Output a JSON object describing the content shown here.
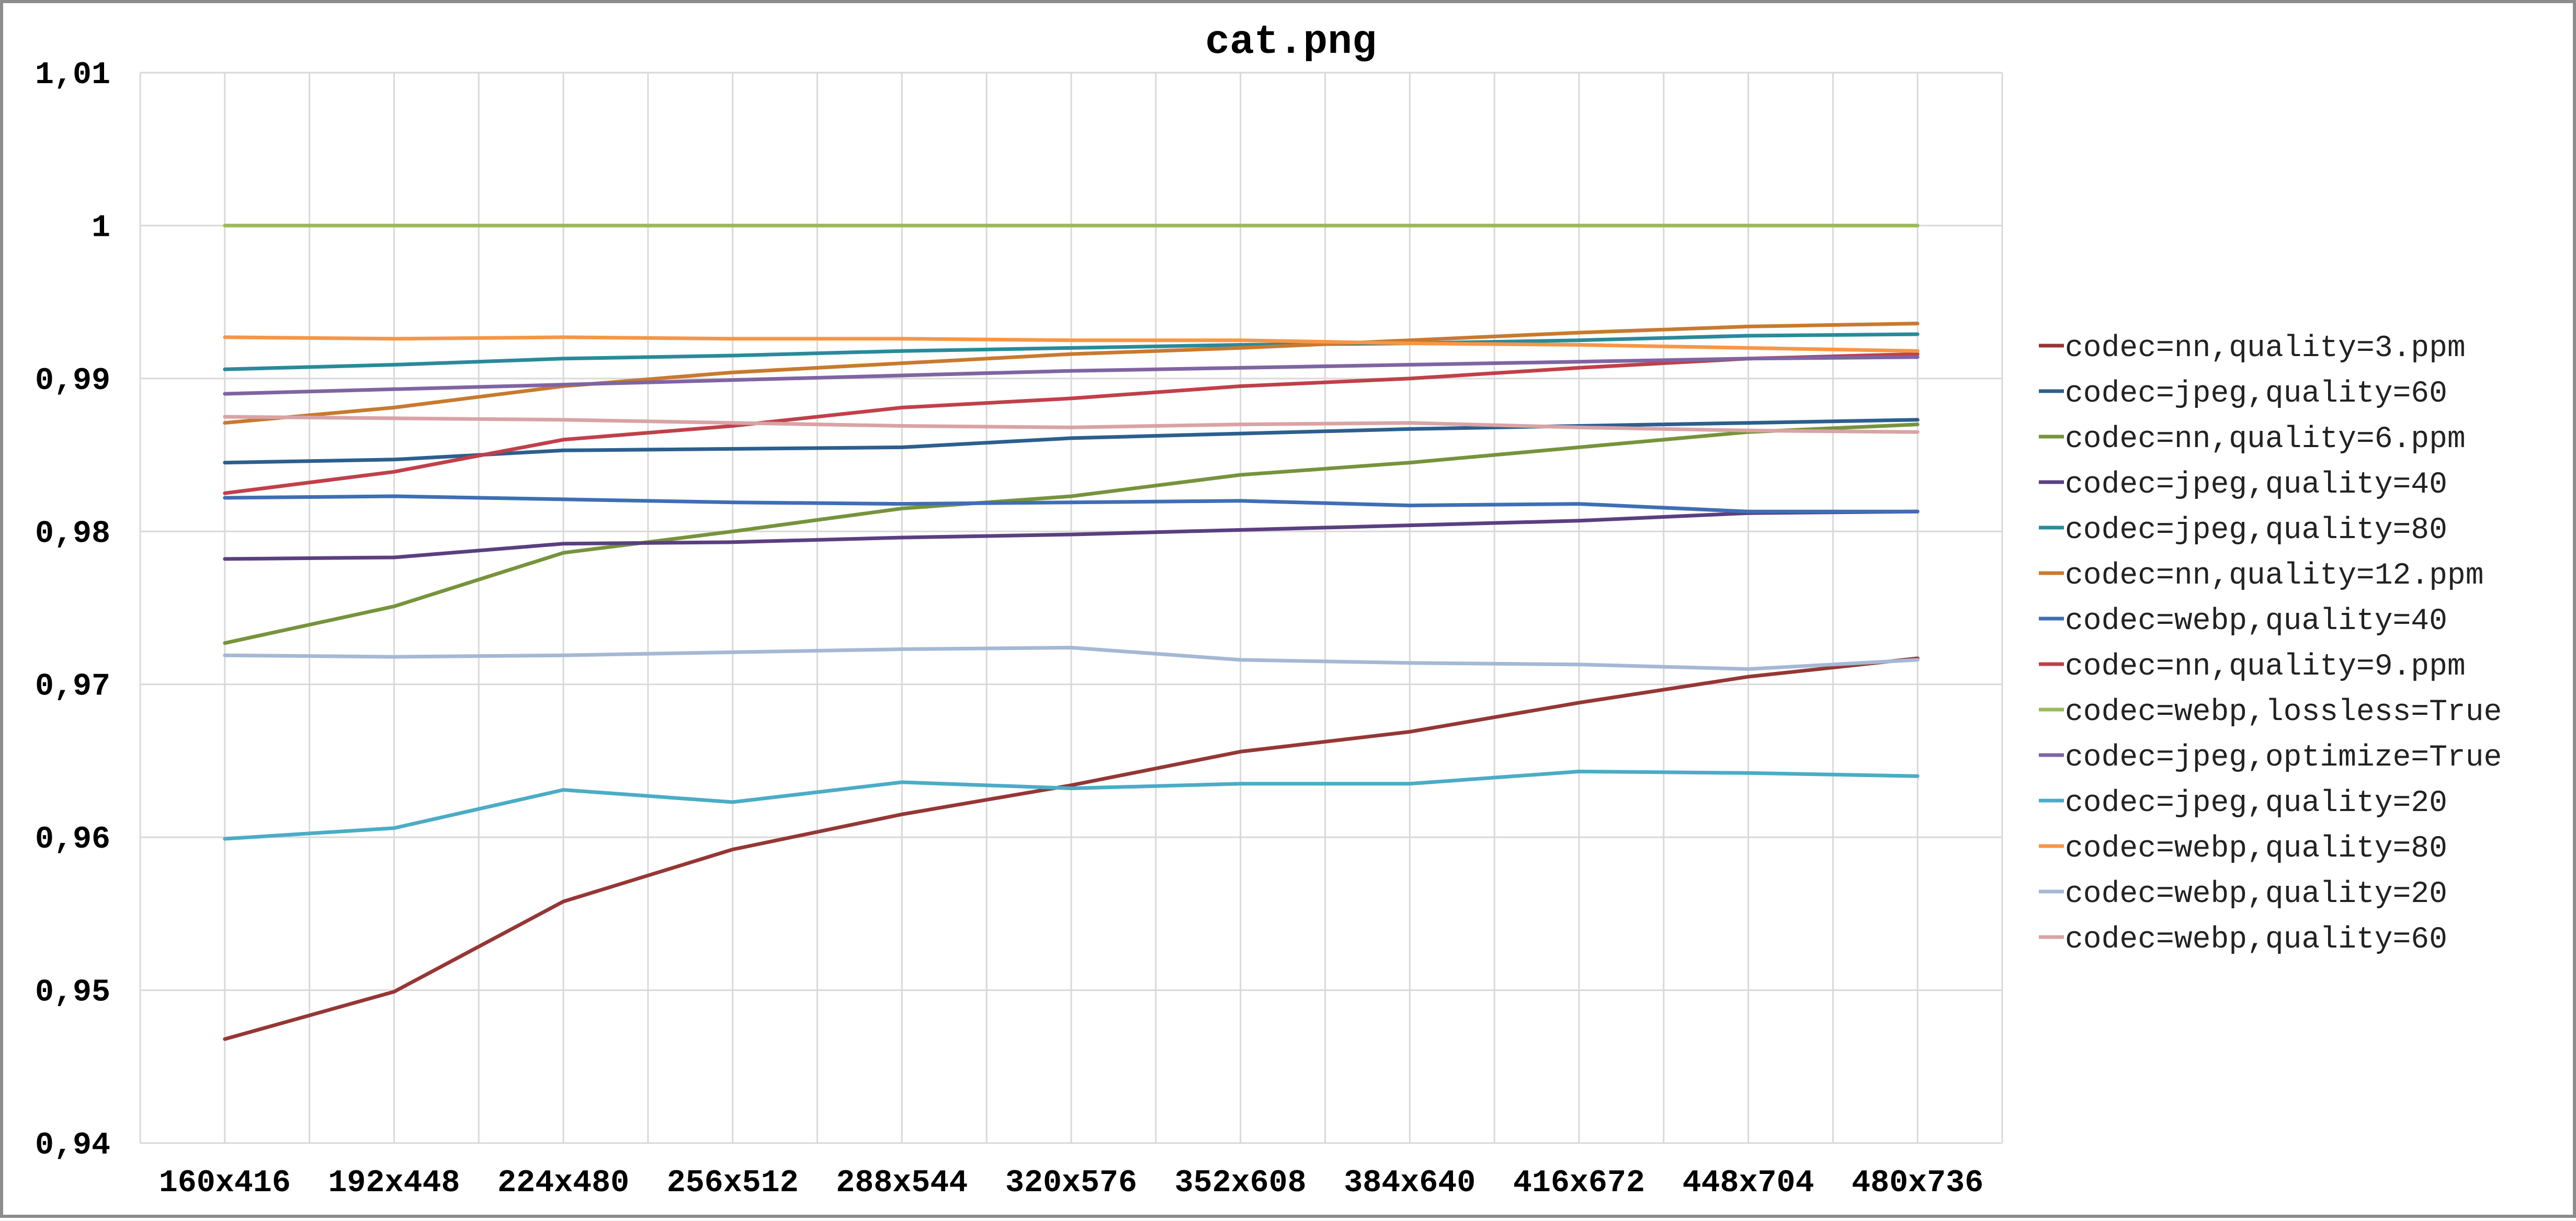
{
  "chart_data": {
    "type": "line",
    "title": "cat.png",
    "xlabel": "",
    "ylabel": "",
    "categories": [
      "160x416",
      "192x448",
      "224x480",
      "256x512",
      "288x544",
      "320x576",
      "352x608",
      "384x640",
      "416x672",
      "448x704",
      "480x736"
    ],
    "ylim": [
      0.94,
      1.01
    ],
    "y_ticks": [
      {
        "value": 1.01,
        "label": "1,01"
      },
      {
        "value": 1.0,
        "label": "1"
      },
      {
        "value": 0.99,
        "label": "0,99"
      },
      {
        "value": 0.98,
        "label": "0,98"
      },
      {
        "value": 0.97,
        "label": "0,97"
      },
      {
        "value": 0.96,
        "label": "0,96"
      },
      {
        "value": 0.95,
        "label": "0,95"
      },
      {
        "value": 0.94,
        "label": "0,94"
      }
    ],
    "grid": true,
    "legend_position": "right",
    "series": [
      {
        "name": "codec=nn,quality=3.ppm",
        "color": "#953735",
        "values": [
          0.9468,
          0.9499,
          0.9558,
          0.9592,
          0.9615,
          0.9634,
          0.9656,
          0.9669,
          0.9688,
          0.9705,
          0.9717
        ]
      },
      {
        "name": "codec=jpeg,quality=60",
        "color": "#2c5f8e",
        "values": [
          0.9845,
          0.9847,
          0.9853,
          0.9854,
          0.9855,
          0.9861,
          0.9864,
          0.9867,
          0.9869,
          0.9871,
          0.9873
        ]
      },
      {
        "name": "codec=nn,quality=6.ppm",
        "color": "#77933c",
        "values": [
          0.9727,
          0.9751,
          0.9786,
          0.98,
          0.9815,
          0.9823,
          0.9837,
          0.9845,
          0.9855,
          0.9865,
          0.987
        ]
      },
      {
        "name": "codec=jpeg,quality=40",
        "color": "#5b3f80",
        "values": [
          0.9782,
          0.9783,
          0.9792,
          0.9793,
          0.9796,
          0.9798,
          0.9801,
          0.9804,
          0.9807,
          0.9812,
          0.9813
        ]
      },
      {
        "name": "codec=jpeg,quality=80",
        "color": "#2a8a9a",
        "values": [
          0.9906,
          0.9909,
          0.9913,
          0.9915,
          0.9918,
          0.992,
          0.9922,
          0.9923,
          0.9925,
          0.9928,
          0.9929
        ]
      },
      {
        "name": "codec=nn,quality=12.ppm",
        "color": "#c87a2e",
        "values": [
          0.9871,
          0.9881,
          0.9895,
          0.9904,
          0.991,
          0.9916,
          0.992,
          0.9925,
          0.993,
          0.9934,
          0.9936
        ]
      },
      {
        "name": "codec=webp,quality=40",
        "color": "#3e6eb5",
        "values": [
          0.9822,
          0.9823,
          0.9821,
          0.9819,
          0.9818,
          0.9819,
          0.982,
          0.9817,
          0.9818,
          0.9813,
          0.9813
        ]
      },
      {
        "name": "codec=nn,quality=9.ppm",
        "color": "#c0404a",
        "values": [
          0.9825,
          0.9839,
          0.986,
          0.9869,
          0.9881,
          0.9887,
          0.9895,
          0.99,
          0.9907,
          0.9913,
          0.9916
        ]
      },
      {
        "name": "codec=webp,lossless=True",
        "color": "#9bbb59",
        "values": [
          1.0,
          1.0,
          1.0,
          1.0,
          1.0,
          1.0,
          1.0,
          1.0,
          1.0,
          1.0,
          1.0
        ]
      },
      {
        "name": "codec=jpeg,optimize=True",
        "color": "#8064a2",
        "values": [
          0.989,
          0.9893,
          0.9896,
          0.9899,
          0.9902,
          0.9905,
          0.9907,
          0.9909,
          0.9911,
          0.9913,
          0.9914
        ]
      },
      {
        "name": "codec=jpeg,quality=20",
        "color": "#4bacc6",
        "values": [
          0.9599,
          0.9606,
          0.9631,
          0.9623,
          0.9636,
          0.9632,
          0.9635,
          0.9635,
          0.9643,
          0.9642,
          0.964
        ]
      },
      {
        "name": "codec=webp,quality=80",
        "color": "#f79646",
        "values": [
          0.9927,
          0.9926,
          0.9927,
          0.9926,
          0.9926,
          0.9925,
          0.9925,
          0.9923,
          0.9922,
          0.992,
          0.9918
        ]
      },
      {
        "name": "codec=webp,quality=20",
        "color": "#a5b8d4",
        "values": [
          0.9719,
          0.9718,
          0.9719,
          0.9721,
          0.9723,
          0.9724,
          0.9716,
          0.9714,
          0.9713,
          0.971,
          0.9716
        ]
      },
      {
        "name": "codec=webp,quality=60",
        "color": "#d9a3a6",
        "values": [
          0.9875,
          0.9874,
          0.9873,
          0.9871,
          0.9869,
          0.9868,
          0.987,
          0.9871,
          0.9868,
          0.9866,
          0.9865
        ]
      }
    ]
  }
}
